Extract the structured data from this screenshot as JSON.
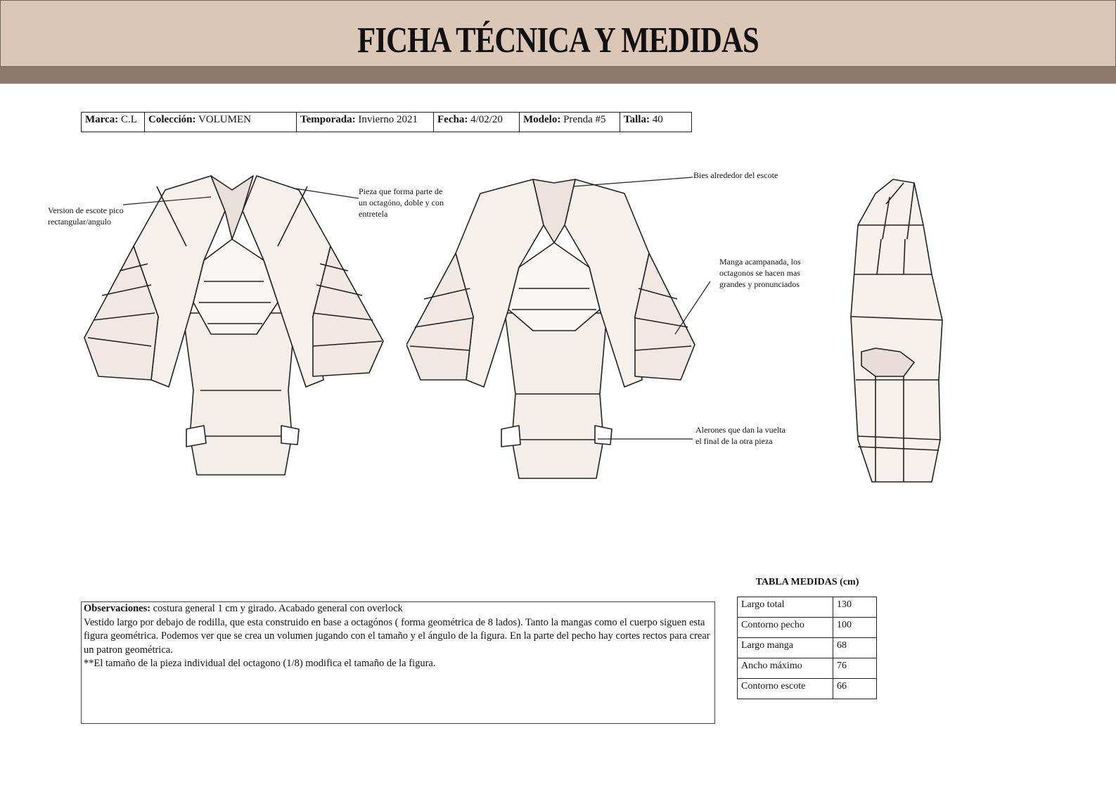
{
  "header": {
    "title": "FICHA TÉCNICA Y MEDIDAS"
  },
  "info": [
    {
      "label": "Marca:",
      "value": "C.L"
    },
    {
      "label": "Colección:",
      "value": "VOLUMEN"
    },
    {
      "label": "Temporada:",
      "value": "Invierno 2021"
    },
    {
      "label": "Fecha:",
      "value": "4/02/20"
    },
    {
      "label": "Modelo:",
      "value": "Prenda #5"
    },
    {
      "label": "Talla:",
      "value": "40"
    }
  ],
  "annotations": {
    "escote_pico": [
      "Version de escote pico",
      "rectangular/angulo"
    ],
    "pieza_octagono": [
      "Pieza que forma parte de",
      "un octagóno, doble y con",
      "entretela"
    ],
    "bies": [
      "Bies alrededor del escote"
    ],
    "manga": [
      "Manga acampanada, los",
      "octagonos se hacen mas",
      "grandes y pronunciados"
    ],
    "alerones": [
      "Alerones que dan la vuelta",
      "el final de la otra pieza"
    ]
  },
  "observaciones": {
    "label": "Observaciones:",
    "first_line": " costura general 1 cm y girado. Acabado general con overlock",
    "lines": [
      "Vestido largo por debajo de rodilla, que esta construido en base a octagónos ( forma geométrica de 8 lados). Tanto la mangas como el cuerpo siguen esta figura geométrica. Podemos ver que se crea un volumen jugando con el tamaño y el ángulo de la figura. En la parte del pecho hay cortes rectos para crear un patron geométrica.",
      "**El tamaño de la pieza individual del octagono (1/8) modifica el tamaño de la figura."
    ]
  },
  "measurements": {
    "title": "TABLA MEDIDAS (cm)",
    "rows": [
      {
        "label": "Largo total",
        "value": "130"
      },
      {
        "label": "Contorno pecho",
        "value": "100"
      },
      {
        "label": "Largo manga",
        "value": "68"
      },
      {
        "label": "Ancho máximo",
        "value": "76"
      },
      {
        "label": "Contorno escote",
        "value": "66"
      }
    ]
  }
}
